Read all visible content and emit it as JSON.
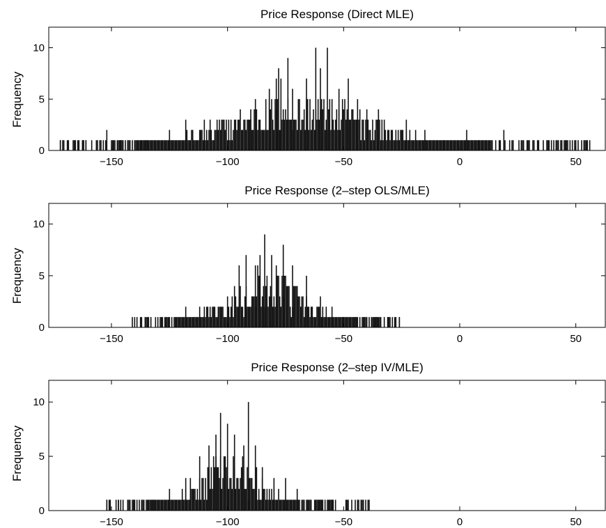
{
  "chart_data": [
    {
      "type": "bar",
      "title": "Price Response (Direct MLE)",
      "ylabel": "Frequency",
      "xlabel": "",
      "xlim": [
        -177,
        63
      ],
      "ylim": [
        0,
        12
      ],
      "xticks": [
        -150,
        -100,
        -50,
        0,
        50
      ],
      "xtick_labels": [
        "−150",
        "−100",
        "−50",
        "0",
        "50"
      ],
      "yticks": [
        0,
        5,
        10
      ],
      "ytick_labels": [
        "0",
        "5",
        "10"
      ],
      "distribution": {
        "mean": -68,
        "sd": 32,
        "xmin": -172,
        "xmax": 56,
        "step": 0.5
      },
      "highlights": [
        [
          -172,
          1
        ],
        [
          -162,
          1
        ],
        [
          -161,
          1
        ],
        [
          -152,
          2
        ],
        [
          -146,
          1
        ],
        [
          -137,
          1
        ],
        [
          -135,
          1
        ],
        [
          -125,
          2
        ],
        [
          -118,
          3
        ],
        [
          -110,
          3
        ],
        [
          -90,
          4
        ],
        [
          -88,
          5
        ],
        [
          -82,
          6
        ],
        [
          -79,
          7
        ],
        [
          -78,
          8
        ],
        [
          -77,
          7
        ],
        [
          -74,
          9
        ],
        [
          -72,
          6
        ],
        [
          -66,
          7
        ],
        [
          -62,
          10
        ],
        [
          -60,
          8
        ],
        [
          -57,
          10
        ],
        [
          -52,
          6
        ],
        [
          -48,
          7
        ],
        [
          -44,
          5
        ],
        [
          -40,
          4
        ],
        [
          -35,
          4
        ],
        [
          -23,
          3
        ],
        [
          -15,
          2
        ],
        [
          -7,
          1
        ],
        [
          3,
          2
        ],
        [
          8,
          1
        ],
        [
          17,
          1
        ],
        [
          19,
          2
        ],
        [
          23,
          1
        ],
        [
          44,
          1
        ],
        [
          45,
          1
        ],
        [
          50,
          1
        ],
        [
          56,
          1
        ]
      ]
    },
    {
      "type": "bar",
      "title": "Price Response (2–step OLS/MLE)",
      "ylabel": "Frequency",
      "xlabel": "",
      "xlim": [
        -177,
        63
      ],
      "ylim": [
        0,
        12
      ],
      "xticks": [
        -150,
        -100,
        -50,
        0,
        50
      ],
      "xtick_labels": [
        "−150",
        "−100",
        "−50",
        "0",
        "50"
      ],
      "yticks": [
        0,
        5,
        10
      ],
      "ytick_labels": [
        "0",
        "5",
        "10"
      ],
      "distribution": {
        "mean": -84,
        "sd": 17,
        "xmin": -141,
        "xmax": -26,
        "step": 0.5
      },
      "highlights": [
        [
          -141,
          1
        ],
        [
          -135,
          1
        ],
        [
          -125,
          1
        ],
        [
          -118,
          2
        ],
        [
          -112,
          2
        ],
        [
          -100,
          3
        ],
        [
          -95,
          6
        ],
        [
          -92,
          7
        ],
        [
          -88,
          6
        ],
        [
          -86,
          7
        ],
        [
          -84,
          9
        ],
        [
          -81,
          7
        ],
        [
          -79,
          6
        ],
        [
          -76,
          8
        ],
        [
          -72,
          6
        ],
        [
          -66,
          5
        ],
        [
          -60,
          3
        ],
        [
          -55,
          2
        ],
        [
          -50,
          1
        ],
        [
          -45,
          1
        ],
        [
          -36,
          1
        ],
        [
          -31,
          1
        ],
        [
          -26,
          1
        ]
      ]
    },
    {
      "type": "bar",
      "title": "Price Response (2–step IV/MLE)",
      "ylabel": "Frequency",
      "xlabel": "",
      "xlim": [
        -177,
        63
      ],
      "ylim": [
        0,
        12
      ],
      "xticks": [
        -150,
        -100,
        -50,
        0,
        50
      ],
      "xtick_labels": [
        "−150",
        "−100",
        "−50",
        "0",
        "50"
      ],
      "yticks": [
        0,
        5,
        10
      ],
      "ytick_labels": [
        "0",
        "5",
        "10"
      ],
      "distribution": {
        "mean": -100,
        "sd": 14,
        "xmin": -152,
        "xmax": -39,
        "step": 0.5
      },
      "highlights": [
        [
          -152,
          1
        ],
        [
          -147,
          1
        ],
        [
          -140,
          1
        ],
        [
          -132,
          1
        ],
        [
          -125,
          2
        ],
        [
          -118,
          3
        ],
        [
          -112,
          5
        ],
        [
          -108,
          6
        ],
        [
          -105,
          7
        ],
        [
          -103,
          9
        ],
        [
          -100,
          8
        ],
        [
          -97,
          7
        ],
        [
          -93,
          6
        ],
        [
          -91,
          10
        ],
        [
          -88,
          6
        ],
        [
          -85,
          4
        ],
        [
          -80,
          3
        ],
        [
          -75,
          3
        ],
        [
          -70,
          2
        ],
        [
          -60,
          1
        ],
        [
          -55,
          1
        ],
        [
          -49,
          1
        ],
        [
          -45,
          1
        ],
        [
          -39,
          1
        ]
      ]
    }
  ]
}
